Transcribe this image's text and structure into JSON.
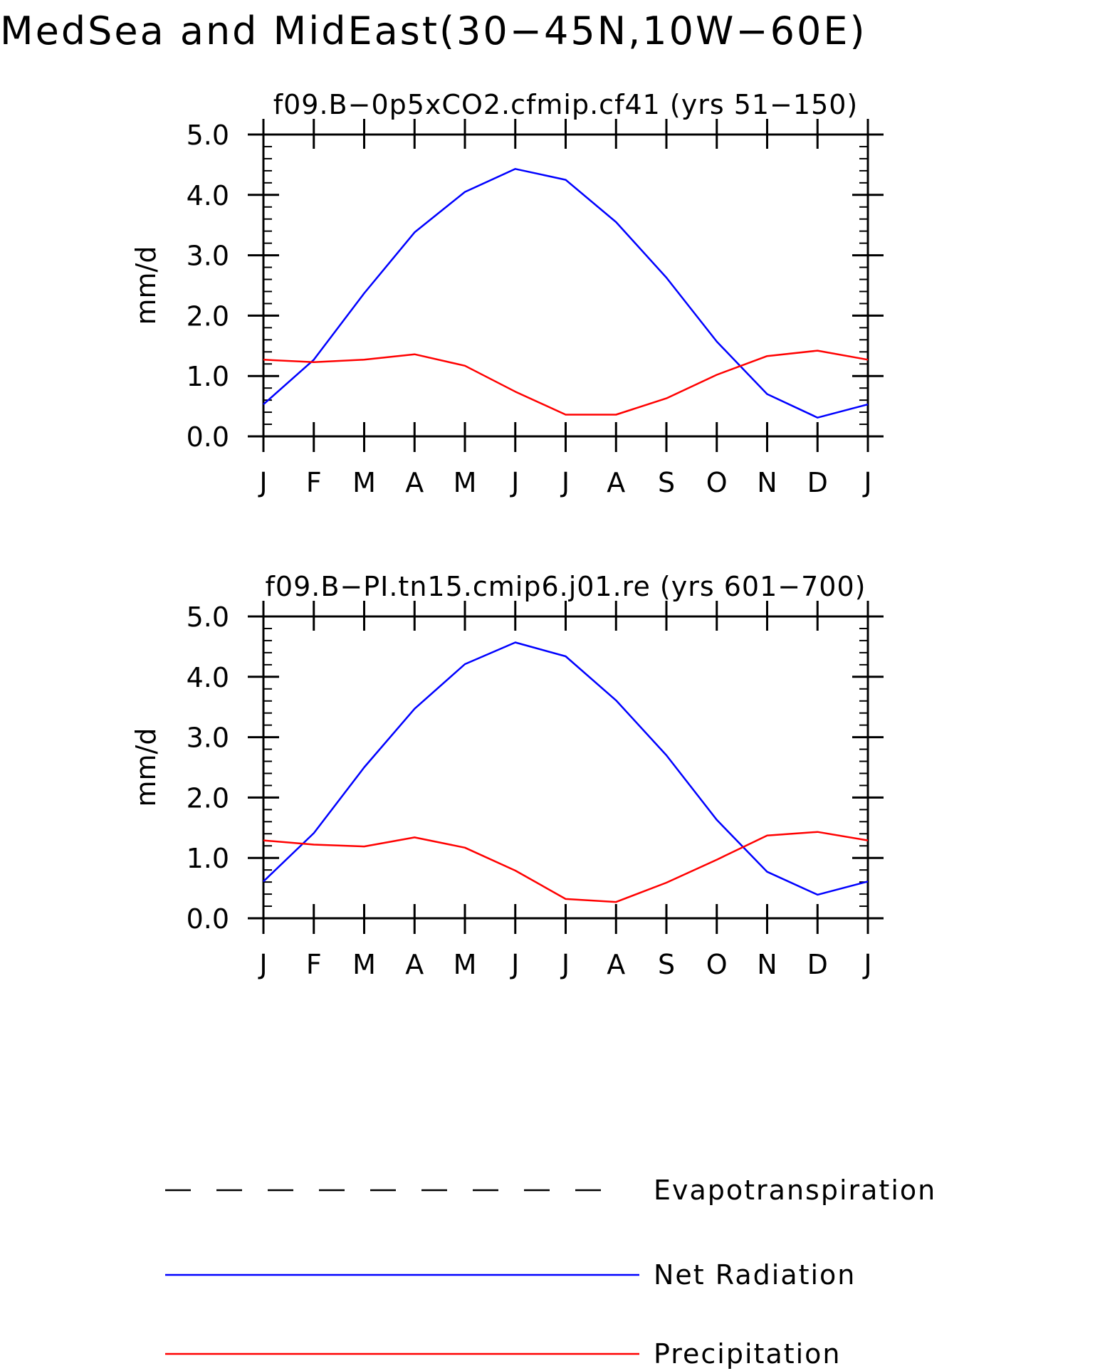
{
  "figure": {
    "title": "MedSea and MidEast(30−45N,10W−60E)"
  },
  "colors": {
    "Net Radiation": "#0000ff",
    "Precipitation": "#ff0000",
    "Evapotranspiration": "#000000",
    "axes": "#000000"
  },
  "chart_data": [
    {
      "type": "line",
      "title": "f09.B−0p5xCO2.cfmip.cf41 (yrs 51−150)",
      "xlabel": "",
      "ylabel": "mm/d",
      "categories": [
        "J",
        "F",
        "M",
        "A",
        "M",
        "J",
        "J",
        "A",
        "S",
        "O",
        "N",
        "D",
        "J"
      ],
      "yticks": [
        "0.0",
        "1.0",
        "2.0",
        "3.0",
        "4.0",
        "5.0"
      ],
      "ylim": [
        0,
        5
      ],
      "grid": false,
      "series": [
        {
          "name": "Net Radiation",
          "values": [
            0.53,
            1.27,
            2.37,
            3.38,
            4.05,
            4.43,
            4.25,
            3.55,
            2.63,
            1.57,
            0.7,
            0.31,
            0.53
          ]
        },
        {
          "name": "Precipitation",
          "values": [
            1.27,
            1.23,
            1.27,
            1.36,
            1.17,
            0.74,
            0.36,
            0.36,
            0.63,
            1.02,
            1.33,
            1.42,
            1.27
          ]
        }
      ]
    },
    {
      "type": "line",
      "title": "f09.B−PI.tn15.cmip6.j01.re (yrs 601−700)",
      "xlabel": "",
      "ylabel": "mm/d",
      "categories": [
        "J",
        "F",
        "M",
        "A",
        "M",
        "J",
        "J",
        "A",
        "S",
        "O",
        "N",
        "D",
        "J"
      ],
      "yticks": [
        "0.0",
        "1.0",
        "2.0",
        "3.0",
        "4.0",
        "5.0"
      ],
      "ylim": [
        0,
        5
      ],
      "grid": false,
      "series": [
        {
          "name": "Net Radiation",
          "values": [
            0.61,
            1.41,
            2.5,
            3.47,
            4.21,
            4.57,
            4.34,
            3.61,
            2.7,
            1.63,
            0.77,
            0.39,
            0.61
          ]
        },
        {
          "name": "Precipitation",
          "values": [
            1.29,
            1.22,
            1.19,
            1.34,
            1.17,
            0.79,
            0.32,
            0.27,
            0.59,
            0.97,
            1.37,
            1.43,
            1.29
          ]
        }
      ]
    }
  ],
  "legend": {
    "position": "bottom",
    "items": [
      {
        "label": "Evapotranspiration",
        "style": "dashed"
      },
      {
        "label": "Net Radiation",
        "style": "solid"
      },
      {
        "label": "Precipitation",
        "style": "solid"
      }
    ]
  }
}
